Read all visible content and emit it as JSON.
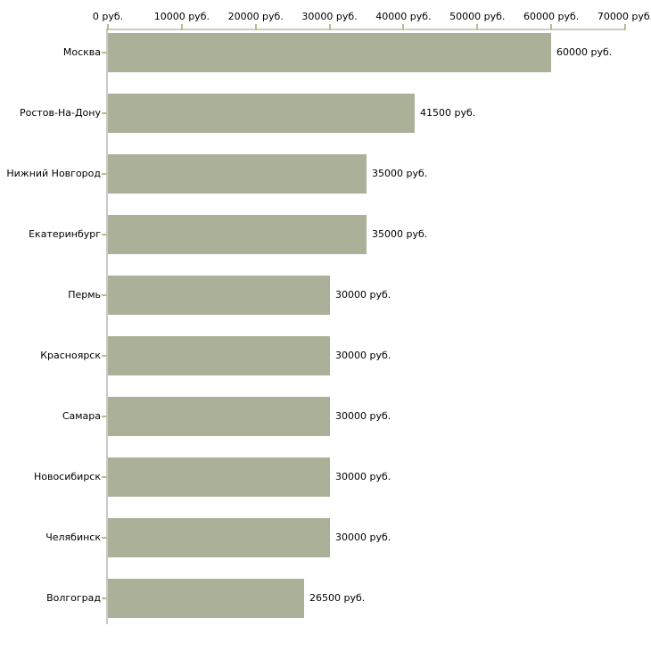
{
  "chart_data": {
    "type": "bar",
    "orientation": "horizontal",
    "title": "",
    "xlabel": "",
    "ylabel": "",
    "unit": "руб.",
    "xlim": [
      0,
      70000
    ],
    "grid": false,
    "legend": false,
    "categories": [
      "Москва",
      "Ростов-На-Дону",
      "Нижний Новгород",
      "Екатеринбург",
      "Пермь",
      "Красноярск",
      "Самара",
      "Новосибирск",
      "Челябинск",
      "Волгоград"
    ],
    "values": [
      60000,
      41500,
      35000,
      35000,
      30000,
      30000,
      30000,
      30000,
      30000,
      26500
    ],
    "value_labels": [
      "60000 руб.",
      "41500 руб.",
      "35000 руб.",
      "35000 руб.",
      "30000 руб.",
      "30000 руб.",
      "30000 руб.",
      "30000 руб.",
      "30000 руб.",
      "26500 руб."
    ],
    "x_tick_values": [
      0,
      10000,
      20000,
      30000,
      40000,
      50000,
      60000,
      70000
    ],
    "x_tick_labels": [
      "0 руб.",
      "10000 руб.",
      "20000 руб.",
      "30000 руб.",
      "40000 руб.",
      "50000 руб.",
      "60000 руб.",
      "70000 руб."
    ],
    "colors": {
      "bar_fill": "#abb198",
      "tick_mark": "#b8bc8e",
      "x_axis_line": "#ccccc0",
      "y_axis_line": "#c9c9c9",
      "text": "#000000",
      "background": "#ffffff"
    }
  }
}
